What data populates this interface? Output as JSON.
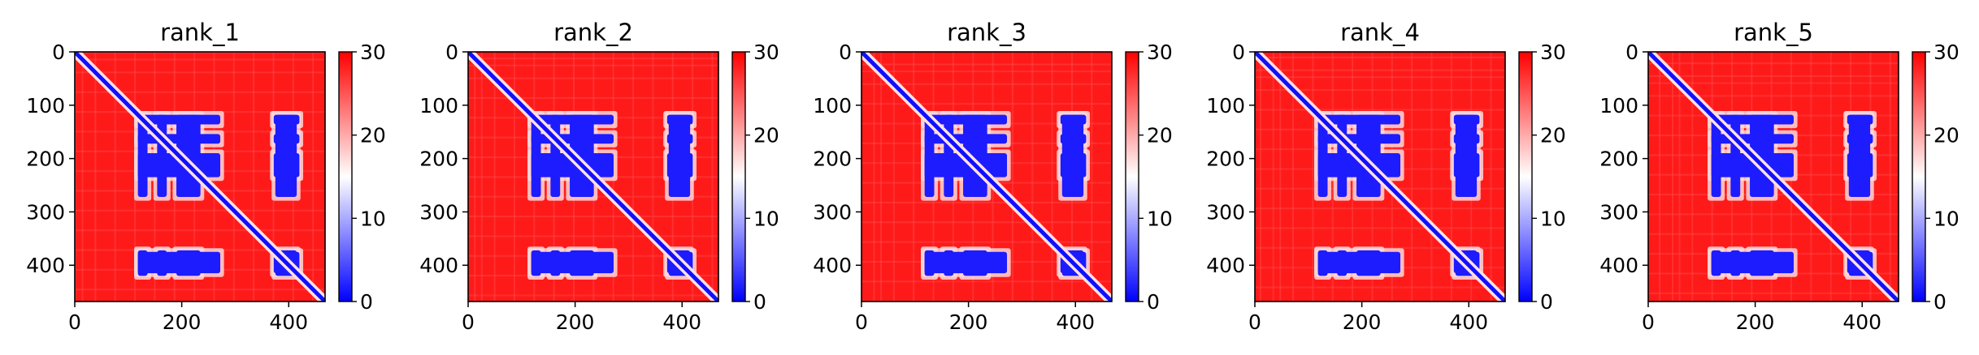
{
  "figure": {
    "type": "heatmap-grid",
    "panel_count": 5
  },
  "chart_data": [
    {
      "type": "heatmap",
      "title": "rank_1",
      "matrix_size": 468,
      "x_ticks": [
        0,
        200,
        400
      ],
      "y_ticks": [
        0,
        100,
        200,
        300,
        400
      ],
      "colorbar": {
        "min": 0,
        "max": 30,
        "ticks": [
          0,
          10,
          20,
          30
        ],
        "colors": [
          "#0000ff",
          "#ffffff",
          "#ff0000"
        ]
      },
      "low_distance_blocks": [
        {
          "rows": [
            118,
            136
          ],
          "cols": [
            118,
            272
          ]
        },
        {
          "rows": [
            154,
            172
          ],
          "cols": [
            118,
            272
          ]
        },
        {
          "rows": [
            190,
            235
          ],
          "cols": [
            118,
            272
          ]
        },
        {
          "rows": [
            118,
            136
          ],
          "cols": [
            372,
            420
          ]
        },
        {
          "rows": [
            154,
            172
          ],
          "cols": [
            372,
            420
          ]
        },
        {
          "rows": [
            190,
            235
          ],
          "cols": [
            372,
            420
          ]
        },
        {
          "rows": [
            375,
            415
          ],
          "cols": [
            118,
            272
          ]
        },
        {
          "rows": [
            375,
            415
          ],
          "cols": [
            372,
            420
          ]
        }
      ]
    },
    {
      "type": "heatmap",
      "title": "rank_2",
      "matrix_size": 468,
      "x_ticks": [
        0,
        200,
        400
      ],
      "y_ticks": [
        0,
        100,
        200,
        300,
        400
      ],
      "colorbar": {
        "min": 0,
        "max": 30,
        "ticks": [
          0,
          10,
          20,
          30
        ],
        "colors": [
          "#0000ff",
          "#ffffff",
          "#ff0000"
        ]
      },
      "low_distance_blocks": [
        {
          "rows": [
            118,
            136
          ],
          "cols": [
            118,
            272
          ]
        },
        {
          "rows": [
            154,
            172
          ],
          "cols": [
            118,
            272
          ]
        },
        {
          "rows": [
            190,
            235
          ],
          "cols": [
            118,
            272
          ]
        },
        {
          "rows": [
            118,
            136
          ],
          "cols": [
            372,
            420
          ]
        },
        {
          "rows": [
            154,
            172
          ],
          "cols": [
            372,
            420
          ]
        },
        {
          "rows": [
            190,
            235
          ],
          "cols": [
            372,
            420
          ]
        },
        {
          "rows": [
            375,
            415
          ],
          "cols": [
            118,
            272
          ]
        },
        {
          "rows": [
            375,
            415
          ],
          "cols": [
            372,
            420
          ]
        }
      ]
    },
    {
      "type": "heatmap",
      "title": "rank_3",
      "matrix_size": 468,
      "x_ticks": [
        0,
        200,
        400
      ],
      "y_ticks": [
        0,
        100,
        200,
        300,
        400
      ],
      "colorbar": {
        "min": 0,
        "max": 30,
        "ticks": [
          0,
          10,
          20,
          30
        ],
        "colors": [
          "#0000ff",
          "#ffffff",
          "#ff0000"
        ]
      },
      "low_distance_blocks": [
        {
          "rows": [
            118,
            136
          ],
          "cols": [
            118,
            272
          ]
        },
        {
          "rows": [
            154,
            172
          ],
          "cols": [
            118,
            272
          ]
        },
        {
          "rows": [
            190,
            235
          ],
          "cols": [
            118,
            272
          ]
        },
        {
          "rows": [
            118,
            136
          ],
          "cols": [
            372,
            420
          ]
        },
        {
          "rows": [
            154,
            172
          ],
          "cols": [
            372,
            420
          ]
        },
        {
          "rows": [
            190,
            235
          ],
          "cols": [
            372,
            420
          ]
        },
        {
          "rows": [
            375,
            415
          ],
          "cols": [
            118,
            272
          ]
        },
        {
          "rows": [
            375,
            415
          ],
          "cols": [
            372,
            420
          ]
        }
      ]
    },
    {
      "type": "heatmap",
      "title": "rank_4",
      "matrix_size": 468,
      "x_ticks": [
        0,
        200,
        400
      ],
      "y_ticks": [
        0,
        100,
        200,
        300,
        400
      ],
      "colorbar": {
        "min": 0,
        "max": 30,
        "ticks": [
          0,
          10,
          20,
          30
        ],
        "colors": [
          "#0000ff",
          "#ffffff",
          "#ff0000"
        ]
      },
      "low_distance_blocks": [
        {
          "rows": [
            118,
            136
          ],
          "cols": [
            118,
            272
          ]
        },
        {
          "rows": [
            154,
            172
          ],
          "cols": [
            118,
            272
          ]
        },
        {
          "rows": [
            190,
            235
          ],
          "cols": [
            118,
            272
          ]
        },
        {
          "rows": [
            118,
            136
          ],
          "cols": [
            372,
            420
          ]
        },
        {
          "rows": [
            154,
            172
          ],
          "cols": [
            372,
            420
          ]
        },
        {
          "rows": [
            190,
            235
          ],
          "cols": [
            372,
            420
          ]
        },
        {
          "rows": [
            375,
            415
          ],
          "cols": [
            118,
            272
          ]
        },
        {
          "rows": [
            375,
            415
          ],
          "cols": [
            372,
            420
          ]
        }
      ]
    },
    {
      "type": "heatmap",
      "title": "rank_5",
      "matrix_size": 468,
      "x_ticks": [
        0,
        200,
        400
      ],
      "y_ticks": [
        0,
        100,
        200,
        300,
        400
      ],
      "colorbar": {
        "min": 0,
        "max": 30,
        "ticks": [
          0,
          10,
          20,
          30
        ],
        "colors": [
          "#0000ff",
          "#ffffff",
          "#ff0000"
        ]
      },
      "low_distance_blocks": [
        {
          "rows": [
            118,
            136
          ],
          "cols": [
            118,
            272
          ]
        },
        {
          "rows": [
            154,
            172
          ],
          "cols": [
            118,
            272
          ]
        },
        {
          "rows": [
            190,
            235
          ],
          "cols": [
            118,
            272
          ]
        },
        {
          "rows": [
            118,
            136
          ],
          "cols": [
            372,
            420
          ]
        },
        {
          "rows": [
            154,
            172
          ],
          "cols": [
            372,
            420
          ]
        },
        {
          "rows": [
            190,
            235
          ],
          "cols": [
            372,
            420
          ]
        },
        {
          "rows": [
            375,
            415
          ],
          "cols": [
            118,
            272
          ]
        },
        {
          "rows": [
            375,
            415
          ],
          "cols": [
            372,
            420
          ]
        }
      ]
    }
  ]
}
